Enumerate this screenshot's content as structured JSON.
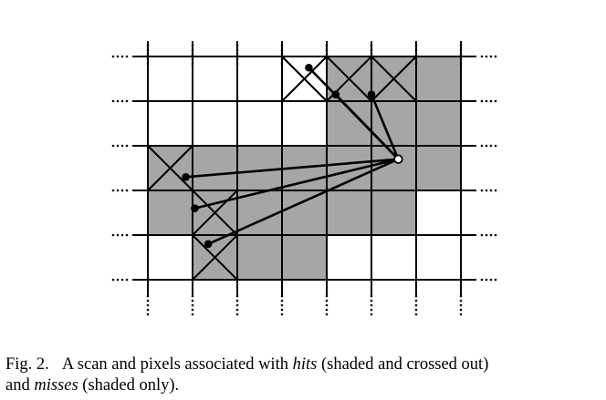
{
  "figure": {
    "shaded_color": "#a6a6a6",
    "line_color": "#000000",
    "grid_columns": 7,
    "grid_rows": 5,
    "miss_cells": [
      [
        4,
        0
      ],
      [
        5,
        0
      ],
      [
        6,
        0
      ],
      [
        4,
        1
      ],
      [
        5,
        1
      ],
      [
        6,
        1
      ],
      [
        0,
        2
      ],
      [
        1,
        2
      ],
      [
        2,
        2
      ],
      [
        3,
        2
      ],
      [
        4,
        2
      ],
      [
        5,
        2
      ],
      [
        6,
        2
      ],
      [
        0,
        3
      ],
      [
        1,
        3
      ],
      [
        2,
        3
      ],
      [
        3,
        3
      ],
      [
        4,
        3
      ],
      [
        5,
        3
      ],
      [
        1,
        4
      ],
      [
        2,
        4
      ],
      [
        3,
        4
      ]
    ],
    "hit_cells": [
      [
        3,
        0
      ],
      [
        4,
        0
      ],
      [
        5,
        0
      ],
      [
        0,
        2
      ],
      [
        1,
        3
      ],
      [
        1,
        4
      ]
    ],
    "sensor": [
      5.6,
      2.3
    ],
    "beam_endpoints": [
      [
        3.6,
        0.25
      ],
      [
        4.2,
        0.85
      ],
      [
        5.0,
        0.85
      ],
      [
        0.85,
        2.7
      ],
      [
        1.05,
        3.4
      ],
      [
        1.35,
        4.2
      ]
    ]
  },
  "caption": {
    "label": "Fig. 2.",
    "part1": "A scan and pixels associated with ",
    "hits": "hits",
    "part2": " (shaded and crossed out)",
    "part3": "and ",
    "misses": "misses",
    "part4": " (shaded only)."
  }
}
